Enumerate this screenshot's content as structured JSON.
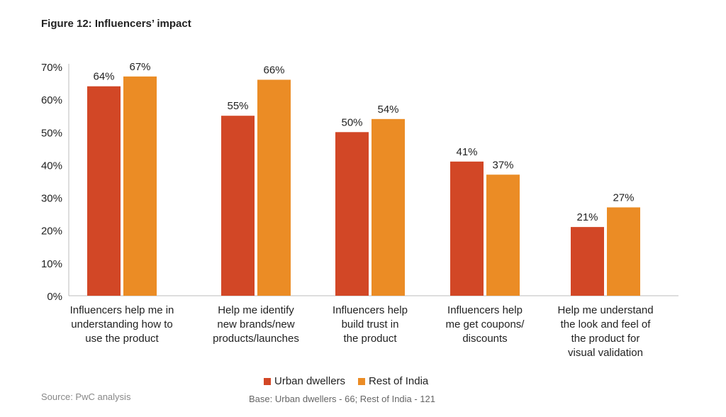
{
  "chart_data": {
    "type": "bar",
    "title": "Figure 12: Influencers’ impact",
    "categories": [
      [
        "Influencers help me in",
        "understanding how to",
        "use the product"
      ],
      [
        "Help me identify",
        "new brands/new",
        "products/launches"
      ],
      [
        "Influencers help",
        "build trust in",
        "the product"
      ],
      [
        "Influencers help",
        "me get coupons/",
        "discounts"
      ],
      [
        "Help me understand",
        "the look and feel of",
        "the product for",
        "visual validation"
      ]
    ],
    "series": [
      {
        "name": "Urban dwellers",
        "color": "#d24726",
        "values": [
          64,
          55,
          50,
          41,
          21
        ],
        "labels": [
          "64%",
          "55%",
          "50%",
          "41%",
          "21%"
        ]
      },
      {
        "name": "Rest of India",
        "color": "#eb8c25",
        "values": [
          67,
          66,
          54,
          37,
          27
        ],
        "labels": [
          "67%",
          "66%",
          "54%",
          "37%",
          "27%"
        ]
      }
    ],
    "ylim": [
      0,
      70
    ],
    "yticks": [
      "0%",
      "10%",
      "20%",
      "30%",
      "40%",
      "50%",
      "60%",
      "70%"
    ],
    "grid": false,
    "legend": "bottom-center",
    "source": "Source: PwC analysis",
    "base": "Base: Urban dwellers - 66; Rest of India - 121"
  }
}
